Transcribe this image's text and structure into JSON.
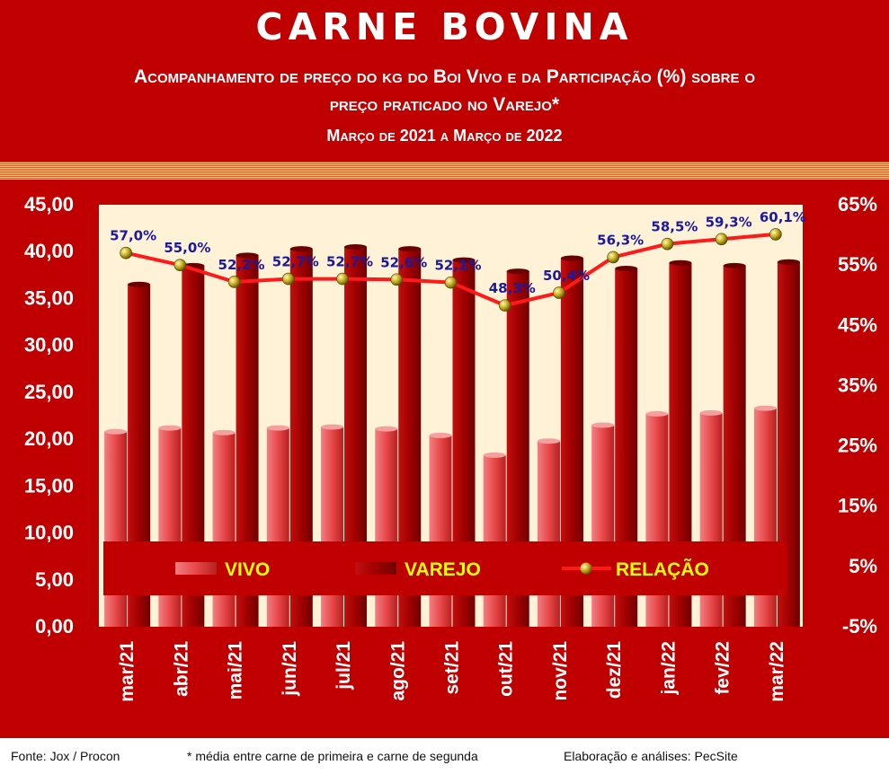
{
  "header": {
    "title": "CARNE BOVINA",
    "subtitle_line1": "Acompanhamento de preço do kg do Boi Vivo e da Participação (%) sobre o",
    "subtitle_line2": "preço praticado no Varejo*",
    "period": "Março de 2021 a Março de 2022"
  },
  "footer": {
    "source": "Fonte: Jox / Procon",
    "note": "* média entre carne de primeira e carne de segunda",
    "credit": "Elaboração e análises: PecSite"
  },
  "colors": {
    "background": "#c00000",
    "plot_background": "#fff2d6",
    "vivo": "#e8484a",
    "varejo": "#a80000",
    "relacao_line": "#ff1a1a",
    "relacao_marker": "#b8a000",
    "relacao_label": "#1a1aa0",
    "legend_text": "#ffff00"
  },
  "chart_data": {
    "type": "bar",
    "categories": [
      "mar/21",
      "abr/21",
      "mai/21",
      "jun/21",
      "jul/21",
      "ago/21",
      "set/21",
      "out/21",
      "nov/21",
      "dez/21",
      "jan/22",
      "fev/22",
      "mar/22"
    ],
    "series": [
      {
        "name": "VIVO",
        "type": "bar",
        "axis": "left",
        "values": [
          20.8,
          21.2,
          20.7,
          21.2,
          21.3,
          21.1,
          20.4,
          18.3,
          19.8,
          21.5,
          22.7,
          22.8,
          23.3
        ]
      },
      {
        "name": "VAREJO",
        "type": "bar",
        "axis": "left",
        "values": [
          36.5,
          38.5,
          39.6,
          40.3,
          40.5,
          40.3,
          39.1,
          37.9,
          39.3,
          38.2,
          38.8,
          38.5,
          38.9
        ]
      },
      {
        "name": "RELAÇÃO",
        "type": "line",
        "axis": "right",
        "values": [
          57.0,
          55.0,
          52.2,
          52.7,
          52.7,
          52.6,
          52.1,
          48.3,
          50.4,
          56.3,
          58.5,
          59.3,
          60.1
        ],
        "labels": [
          "57,0%",
          "55,0%",
          "52,2%",
          "52,7%",
          "52,7%",
          "52,6%",
          "52,1%",
          "48,3%",
          "50,4%",
          "56,3%",
          "58,5%",
          "59,3%",
          "60,1%"
        ]
      }
    ],
    "y_left": {
      "ylim": [
        0,
        45
      ],
      "ticks": [
        "0,00",
        "5,00",
        "10,00",
        "15,00",
        "20,00",
        "25,00",
        "30,00",
        "35,00",
        "40,00",
        "45,00"
      ]
    },
    "y_right": {
      "ylim": [
        -5,
        65
      ],
      "ticks": [
        "-5%",
        "5%",
        "15%",
        "25%",
        "35%",
        "45%",
        "55%",
        "65%"
      ]
    },
    "legend": {
      "placement": "bottom-inside",
      "entries": [
        "VIVO",
        "VAREJO",
        "RELAÇÃO"
      ]
    },
    "grid": false
  }
}
